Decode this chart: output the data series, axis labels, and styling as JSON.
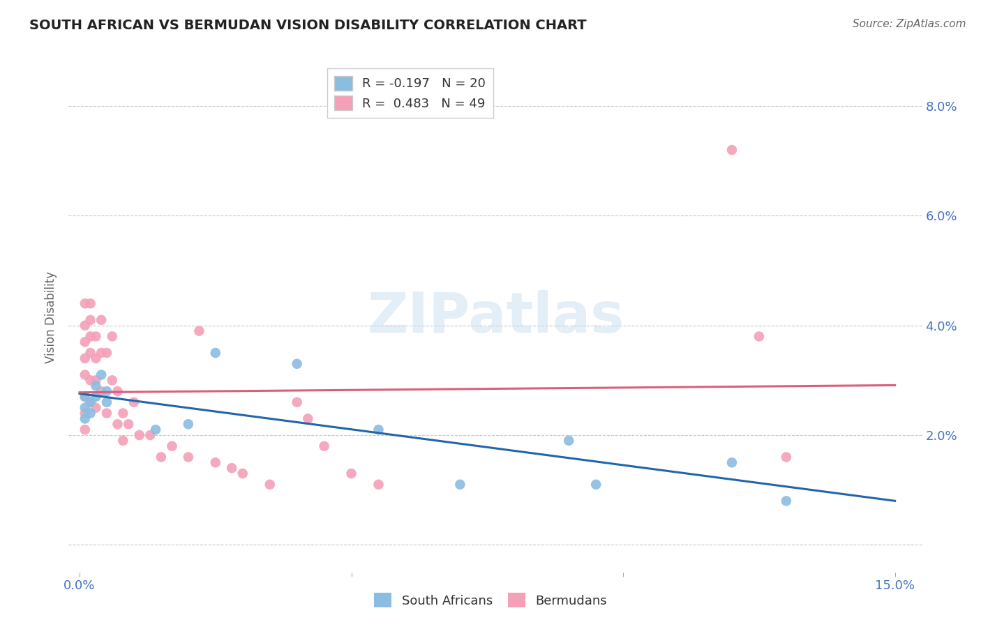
{
  "title": "SOUTH AFRICAN VS BERMUDAN VISION DISABILITY CORRELATION CHART",
  "source": "Source: ZipAtlas.com",
  "ylabel": "Vision Disability",
  "xlim": [
    -0.002,
    0.155
  ],
  "ylim": [
    -0.005,
    0.088
  ],
  "watermark": "ZIPatlas",
  "legend_r1": "R = -0.197",
  "legend_n1": "N = 20",
  "legend_r2": "R =  0.483",
  "legend_n2": "N = 49",
  "color_blue": "#8bbde0",
  "color_pink": "#f4a0b8",
  "line_color_blue": "#2166ac",
  "line_color_pink": "#d9607a",
  "south_africans_x": [
    0.001,
    0.001,
    0.001,
    0.002,
    0.002,
    0.003,
    0.003,
    0.004,
    0.005,
    0.005,
    0.014,
    0.02,
    0.025,
    0.04,
    0.055,
    0.07,
    0.09,
    0.095,
    0.12,
    0.13
  ],
  "south_africans_y": [
    0.027,
    0.025,
    0.023,
    0.026,
    0.024,
    0.029,
    0.027,
    0.031,
    0.028,
    0.026,
    0.021,
    0.022,
    0.035,
    0.033,
    0.021,
    0.011,
    0.019,
    0.011,
    0.015,
    0.008
  ],
  "bermudans_x": [
    0.001,
    0.001,
    0.001,
    0.001,
    0.001,
    0.001,
    0.001,
    0.001,
    0.002,
    0.002,
    0.002,
    0.002,
    0.002,
    0.002,
    0.003,
    0.003,
    0.003,
    0.003,
    0.004,
    0.004,
    0.004,
    0.005,
    0.005,
    0.006,
    0.006,
    0.007,
    0.007,
    0.008,
    0.008,
    0.009,
    0.01,
    0.011,
    0.013,
    0.015,
    0.017,
    0.02,
    0.022,
    0.025,
    0.028,
    0.03,
    0.035,
    0.04,
    0.042,
    0.045,
    0.05,
    0.055,
    0.12,
    0.125,
    0.13
  ],
  "bermudans_y": [
    0.044,
    0.04,
    0.037,
    0.034,
    0.031,
    0.027,
    0.024,
    0.021,
    0.044,
    0.041,
    0.038,
    0.035,
    0.03,
    0.026,
    0.038,
    0.034,
    0.03,
    0.025,
    0.041,
    0.035,
    0.028,
    0.035,
    0.024,
    0.038,
    0.03,
    0.028,
    0.022,
    0.024,
    0.019,
    0.022,
    0.026,
    0.02,
    0.02,
    0.016,
    0.018,
    0.016,
    0.039,
    0.015,
    0.014,
    0.013,
    0.011,
    0.026,
    0.023,
    0.018,
    0.013,
    0.011,
    0.072,
    0.038,
    0.016
  ]
}
